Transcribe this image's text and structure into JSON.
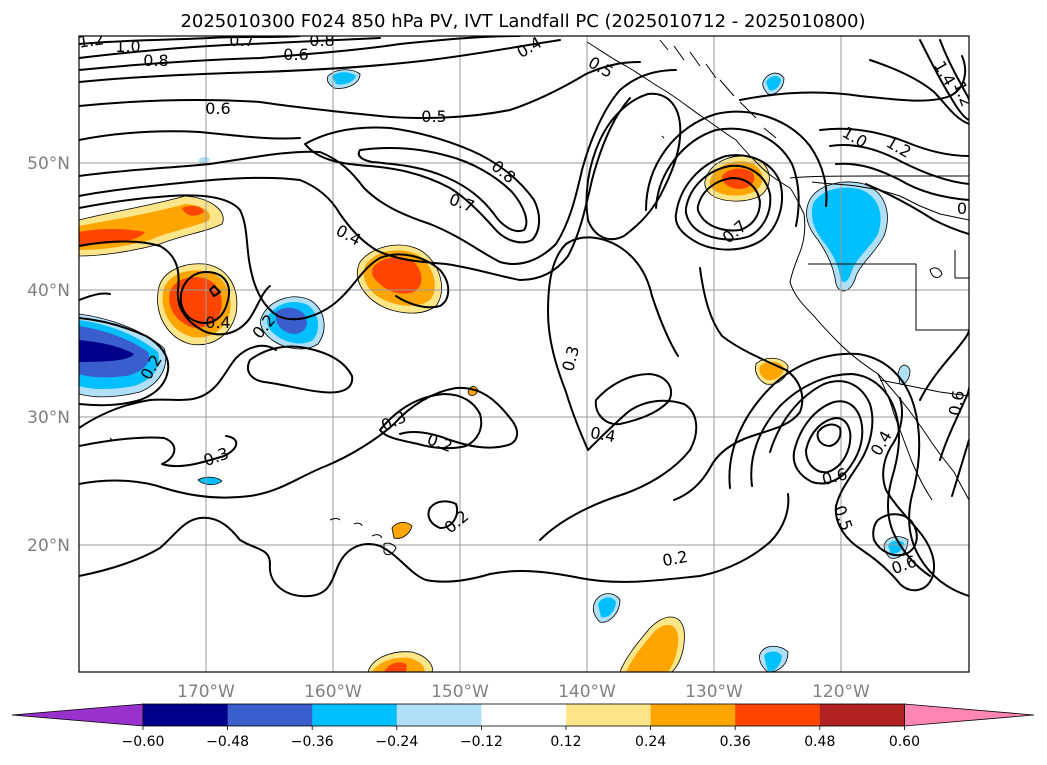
{
  "title": "2025010300 F024 850 hPa PV, IVT Landfall PC (2025010712 - 2025010800)",
  "map": {
    "projection": "PlateCarree",
    "lon_range": [
      -180,
      -110
    ],
    "lat_range": [
      10,
      60
    ],
    "lat_ticks": [
      "50°N",
      "40°N",
      "30°N",
      "20°N"
    ],
    "lon_ticks": [
      "170°W",
      "160°W",
      "150°W",
      "140°W",
      "130°W",
      "120°W"
    ],
    "grid": true
  },
  "colorbar": {
    "orientation": "horizontal",
    "extend": "both",
    "tick_labels": [
      "−0.60",
      "−0.48",
      "−0.36",
      "−0.24",
      "−0.12",
      "0.12",
      "0.24",
      "0.36",
      "0.48",
      "0.60"
    ],
    "colors": [
      "#9932cc",
      "#00008b",
      "#3a5fcd",
      "#00bfff",
      "#b0e0f8",
      "#ffffff",
      "#fde68a",
      "#ffa500",
      "#ff4500",
      "#b22222",
      "#ff86b0"
    ]
  },
  "contour_labels": [
    "1.2",
    "1.0",
    "0.8",
    "0.7",
    "0.6",
    "0.8",
    "0.4",
    "0.5",
    "0.6",
    "0.5",
    "0.8",
    "0.7",
    "0.4",
    "0.7",
    "1.0",
    "1.2",
    "1.4",
    "1.2",
    "0",
    "0.4",
    "0.2",
    "0.2",
    "0.3",
    "0.3",
    "0.3",
    "0.2",
    "0.4",
    "0.2",
    "0.2",
    "0.6",
    "0.5",
    "0.4",
    "0.6",
    "0.6"
  ]
}
